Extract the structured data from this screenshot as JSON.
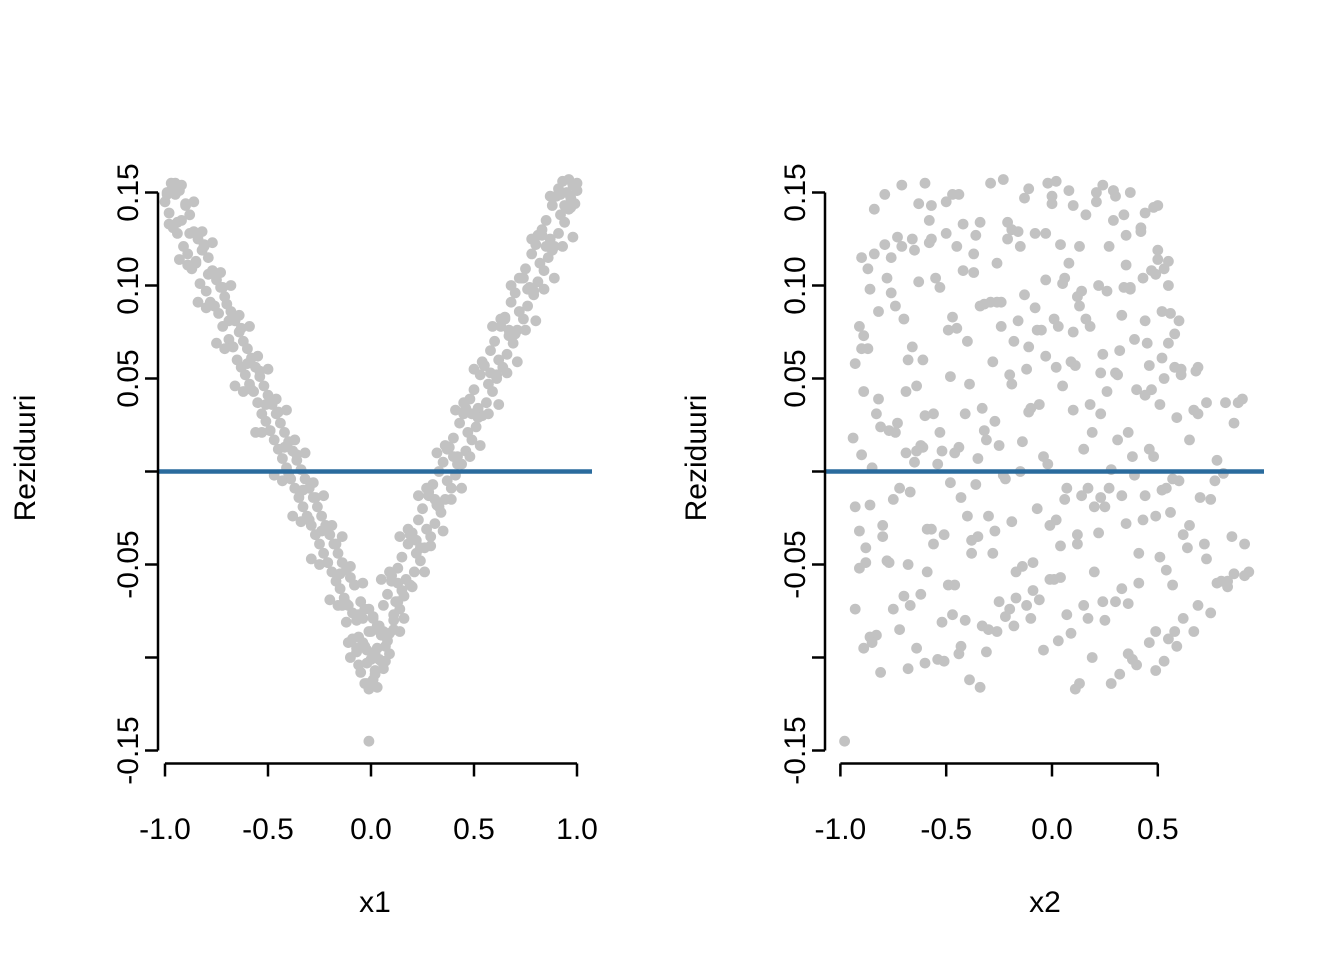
{
  "colors": {
    "background": "#ffffff",
    "point": "#c2c2c2",
    "zero_line": "#2a6b9d",
    "axis": "#000000"
  },
  "points": {
    "x1": [
      -1.0,
      -0.99,
      -0.98,
      -0.97,
      -0.96,
      -0.95,
      -0.94,
      -0.93,
      -0.92,
      -0.91,
      -0.9,
      -0.89,
      -0.88,
      -0.87,
      -0.86,
      -0.85,
      -0.84,
      -0.83,
      -0.82,
      -0.81,
      -0.8,
      -0.79,
      -0.78,
      -0.77,
      -0.76,
      -0.75,
      -0.74,
      -0.73,
      -0.72,
      -0.71,
      -0.7,
      -0.69,
      -0.68,
      -0.67,
      -0.66,
      -0.65,
      -0.64,
      -0.63,
      -0.62,
      -0.61,
      -0.6,
      -0.59,
      -0.58,
      -0.57,
      -0.56,
      -0.55,
      -0.54,
      -0.53,
      -0.52,
      -0.51,
      -0.5,
      -0.49,
      -0.48,
      -0.47,
      -0.46,
      -0.45,
      -0.44,
      -0.43,
      -0.42,
      -0.41,
      -0.4,
      -0.39,
      -0.38,
      -0.37,
      -0.36,
      -0.35,
      -0.34,
      -0.33,
      -0.32,
      -0.31,
      -0.3,
      -0.29,
      -0.28,
      -0.27,
      -0.26,
      -0.25,
      -0.24,
      -0.23,
      -0.22,
      -0.21,
      -0.2,
      -0.19,
      -0.18,
      -0.17,
      -0.16,
      -0.15,
      -0.14,
      -0.13,
      -0.12,
      -0.11,
      -0.1,
      -0.09,
      -0.08,
      -0.07,
      -0.06,
      -0.05,
      -0.04,
      -0.03,
      -0.02,
      -0.01,
      0.0,
      0.01,
      0.02,
      0.03,
      0.04,
      0.05,
      0.06,
      0.07,
      0.08,
      0.09,
      0.1,
      0.11,
      0.12,
      0.13,
      0.14,
      0.15,
      0.16,
      0.17,
      0.18,
      0.19,
      0.2,
      0.21,
      0.22,
      0.23,
      0.24,
      0.25,
      0.26,
      0.27,
      0.28,
      0.29,
      0.3,
      0.31,
      0.32,
      0.33,
      0.34,
      0.35,
      0.36,
      0.37,
      0.38,
      0.39,
      0.4,
      0.41,
      0.42,
      0.43,
      0.44,
      0.45,
      0.46,
      0.47,
      0.48,
      0.49,
      0.5,
      0.51,
      0.52,
      0.53,
      0.54,
      0.55,
      0.56,
      0.57,
      0.58,
      0.59,
      0.6,
      0.61,
      0.62,
      0.63,
      0.64,
      0.65,
      0.66,
      0.67,
      0.68,
      0.69,
      0.7,
      0.71,
      0.72,
      0.73,
      0.74,
      0.75,
      0.76,
      0.77,
      0.78,
      0.79,
      0.8,
      0.81,
      0.82,
      0.83,
      0.84,
      0.85,
      0.86,
      0.87,
      0.88,
      0.89,
      0.9,
      0.91,
      0.92,
      0.93,
      0.94,
      0.95,
      0.96,
      0.97,
      0.98,
      0.99,
      1.0,
      -0.99,
      -0.98,
      -0.97,
      -0.95,
      -0.94,
      -0.93,
      -0.92,
      -0.9,
      -0.89,
      -0.88,
      -0.86,
      -0.85,
      -0.84,
      -0.82,
      -0.81,
      -0.8,
      -0.79,
      -0.77,
      -0.76,
      -0.75,
      -0.73,
      -0.72,
      -0.71,
      -0.69,
      -0.68,
      -0.67,
      -0.66,
      -0.64,
      -0.63,
      -0.62,
      -0.6,
      -0.59,
      -0.58,
      -0.56,
      -0.55,
      -0.54,
      -0.53,
      -0.51,
      -0.5,
      -0.49,
      -0.47,
      -0.46,
      -0.45,
      -0.43,
      -0.42,
      -0.41,
      -0.4,
      -0.38,
      -0.37,
      -0.36,
      -0.34,
      -0.33,
      -0.32,
      -0.3,
      -0.29,
      -0.28,
      -0.27,
      -0.25,
      -0.24,
      -0.23,
      -0.21,
      -0.2,
      -0.19,
      -0.17,
      -0.16,
      -0.15,
      -0.14,
      -0.12,
      -0.11,
      -0.1,
      -0.08,
      -0.07,
      -0.06,
      -0.04,
      -0.03,
      -0.02,
      -0.01,
      0.01,
      0.02,
      0.03,
      0.05,
      0.06,
      0.07,
      0.09,
      0.1,
      0.11,
      0.13,
      0.14,
      0.15,
      0.16,
      0.18,
      0.19,
      0.2,
      0.22,
      0.23,
      0.24,
      0.26,
      0.27,
      0.28,
      0.29,
      0.31,
      0.32,
      0.33,
      0.35,
      0.36,
      0.37,
      0.39,
      0.4,
      0.41,
      0.42,
      0.44,
      0.45,
      0.46,
      0.48,
      0.49,
      0.5,
      0.52,
      0.53,
      0.54,
      0.55,
      0.57,
      0.58,
      0.59,
      0.61,
      0.62,
      0.63,
      0.65,
      0.66,
      0.67,
      0.68,
      0.7,
      0.71,
      0.72,
      0.74,
      0.75,
      0.76,
      0.78,
      0.79,
      0.8,
      0.81,
      0.83,
      0.84,
      0.85,
      0.87,
      0.88,
      0.89,
      0.91,
      0.92,
      0.93,
      0.94,
      0.96,
      0.97,
      0.98,
      1.0,
      -0.14,
      -0.12,
      -0.1,
      -0.09,
      -0.07,
      -0.06,
      -0.05,
      -0.04,
      -0.03,
      -0.02,
      -0.01,
      0.0,
      0.01,
      0.02,
      0.03,
      0.04,
      0.05,
      0.06,
      0.08,
      0.09,
      0.11,
      0.13,
      0.03,
      0.14,
      -0.01
    ],
    "x2": [
      -0.5,
      0.21,
      0.44,
      -0.29,
      0.42,
      -0.79,
      -0.08,
      0.29,
      -0.58,
      0.13,
      0.1,
      -0.37,
      0.34,
      -0.87,
      -0.16,
      0.55,
      -0.66,
      0.05,
      0.5,
      -0.45,
      0.26,
      -0.9,
      -0.24,
      0.47,
      -0.74,
      -0.03,
      0.56,
      -0.53,
      0.18,
      0.12,
      -0.32,
      0.39,
      -0.82,
      -0.11,
      0.6,
      -0.61,
      0.1,
      0.69,
      -0.4,
      0.31,
      -0.9,
      -0.19,
      0.52,
      -0.69,
      0.02,
      0.73,
      -0.48,
      0.23,
      -0.64,
      -0.27,
      0.44,
      -0.77,
      -0.06,
      0.65,
      -0.56,
      0.15,
      0.86,
      -0.35,
      0.36,
      -0.85,
      -0.14,
      0.57,
      -0.64,
      0.07,
      0.78,
      -0.43,
      0.28,
      -0.93,
      -0.22,
      0.49,
      -0.72,
      -0.01,
      0.7,
      -0.51,
      0.2,
      0.91,
      -0.3,
      0.41,
      -0.8,
      -0.09,
      0.62,
      -0.59,
      0.12,
      0.83,
      -0.38,
      0.33,
      -0.88,
      -0.17,
      0.54,
      -0.67,
      0.04,
      0.75,
      -0.46,
      0.25,
      -0.86,
      -0.25,
      0.46,
      -0.75,
      -0.04,
      0.67,
      -0.54,
      0.17,
      0.36,
      -0.33,
      0.38,
      -0.83,
      -0.12,
      0.59,
      -0.62,
      0.09,
      0.8,
      -0.41,
      0.3,
      -0.91,
      -0.2,
      0.51,
      -0.7,
      0.01,
      0.72,
      -0.49,
      0.22,
      0.93,
      -0.28,
      0.43,
      -0.78,
      -0.07,
      0.64,
      -0.57,
      0.14,
      0.85,
      -0.36,
      0.35,
      -0.86,
      -0.15,
      0.56,
      -0.65,
      0.06,
      0.77,
      -0.44,
      0.27,
      -0.94,
      -0.23,
      0.48,
      -0.73,
      -0.02,
      0.69,
      -0.52,
      0.19,
      0.9,
      -0.31,
      0.4,
      -0.81,
      -0.1,
      0.61,
      -0.6,
      0.11,
      0.82,
      -0.39,
      0.32,
      -0.89,
      -0.18,
      0.53,
      -0.68,
      0.03,
      0.58,
      -0.47,
      0.24,
      -0.89,
      -0.26,
      0.45,
      -0.76,
      -0.05,
      0.52,
      -0.55,
      0.16,
      0.53,
      -0.34,
      0.37,
      -0.84,
      -0.13,
      0.04,
      -0.63,
      0.08,
      -0.19,
      -0.42,
      0.29,
      -0.76,
      -0.21,
      0.5,
      -0.71,
      0.0,
      -0.03,
      0.16,
      0.02,
      -0.34,
      0.37,
      -0.84,
      -0.13,
      0.24,
      -0.63,
      0.08,
      -0.47,
      -0.42,
      0.29,
      -0.6,
      -0.21,
      0.5,
      -0.71,
      0.0,
      0.35,
      -0.5,
      0.21,
      -0.26,
      -0.29,
      0.42,
      -0.79,
      -0.08,
      0.49,
      -0.58,
      0.13,
      0.55,
      -0.37,
      0.34,
      -0.87,
      -0.16,
      0.55,
      -0.66,
      0.05,
      0.33,
      -0.45,
      0.26,
      -0.93,
      -0.24,
      0.47,
      -0.74,
      -0.03,
      0.68,
      -0.53,
      0.18,
      0.61,
      -0.32,
      0.39,
      -0.82,
      -0.11,
      0.6,
      -0.61,
      0.1,
      0.81,
      -0.4,
      0.31,
      -0.9,
      -0.19,
      0.52,
      -0.69,
      0.02,
      0.73,
      -0.48,
      0.23,
      -0.68,
      -0.27,
      0.44,
      -0.77,
      -0.06,
      0.65,
      -0.56,
      0.15,
      0.86,
      -0.35,
      0.36,
      -0.85,
      -0.14,
      0.57,
      -0.64,
      0.07,
      0.78,
      -0.43,
      0.28,
      -0.93,
      -0.22,
      0.49,
      -0.72,
      -0.01,
      0.58,
      -0.51,
      0.2,
      0.91,
      -0.3,
      0.41,
      -0.8,
      -0.09,
      0.62,
      -0.59,
      0.12,
      0.83,
      -0.38,
      0.33,
      -0.88,
      -0.17,
      0.54,
      -0.67,
      0.04,
      0.75,
      -0.46,
      0.25,
      -0.91,
      -0.25,
      0.46,
      -0.75,
      -0.04,
      0.67,
      -0.54,
      0.17,
      0.88,
      -0.33,
      0.38,
      -0.83,
      -0.12,
      0.59,
      -0.62,
      0.09,
      0.46,
      -0.41,
      0.3,
      -0.91,
      -0.2,
      0.51,
      -0.7,
      0.01,
      0.23,
      -0.49,
      0.22,
      0.58,
      -0.28,
      0.43,
      -0.78,
      -0.07,
      0.37,
      -0.57,
      0.14,
      0.44,
      -0.36,
      0.35,
      -0.86,
      -0.15,
      0.3,
      -0.65,
      0.06,
      -0.11,
      -0.44,
      0.27,
      -0.57,
      -0.23,
      0.48,
      -0.73,
      -0.02,
      0.69,
      -0.52,
      0.19,
      0.55,
      -0.31,
      0.4,
      -0.81,
      -0.1,
      0.13,
      -0.6,
      0.11,
      0.49,
      -0.39,
      0.32,
      -0.89,
      -0.18,
      0.53,
      -0.68,
      0.03,
      -0.44,
      -0.47,
      0.24,
      -0.34,
      -0.26,
      -0.98
    ],
    "residuals": [
      0.145,
      0.15,
      0.139,
      0.155,
      0.131,
      0.149,
      0.128,
      0.151,
      0.135,
      0.121,
      0.143,
      0.117,
      0.138,
      0.109,
      0.129,
      0.113,
      0.125,
      0.101,
      0.119,
      0.121,
      0.097,
      0.115,
      0.091,
      0.108,
      0.089,
      0.103,
      0.085,
      0.099,
      0.078,
      0.094,
      0.09,
      0.071,
      0.086,
      0.067,
      0.081,
      0.06,
      0.075,
      0.056,
      0.07,
      0.052,
      0.066,
      0.047,
      0.061,
      0.043,
      0.056,
      0.037,
      0.051,
      0.031,
      0.046,
      0.027,
      0.041,
      0.022,
      0.036,
      0.017,
      0.031,
      0.012,
      0.026,
      0.007,
      0.021,
      0.002,
      0.016,
      -0.004,
      0.011,
      -0.009,
      0.006,
      -0.014,
      0.001,
      -0.019,
      -0.004,
      -0.024,
      -0.009,
      -0.029,
      -0.014,
      -0.034,
      -0.019,
      -0.039,
      -0.024,
      -0.044,
      -0.029,
      -0.049,
      -0.034,
      -0.054,
      -0.039,
      -0.059,
      -0.044,
      -0.063,
      -0.049,
      -0.068,
      -0.053,
      -0.072,
      -0.057,
      -0.076,
      -0.061,
      -0.08,
      -0.089,
      -0.07,
      -0.092,
      -0.074,
      -0.096,
      -0.086,
      -0.101,
      -0.079,
      -0.098,
      -0.083,
      -0.101,
      -0.088,
      -0.072,
      -0.094,
      -0.066,
      -0.087,
      -0.059,
      -0.08,
      -0.07,
      -0.052,
      -0.074,
      -0.046,
      -0.067,
      -0.058,
      -0.039,
      -0.061,
      -0.033,
      -0.054,
      -0.044,
      -0.026,
      -0.048,
      -0.02,
      -0.041,
      -0.031,
      -0.013,
      -0.035,
      -0.007,
      -0.028,
      -0.018,
      0.0,
      -0.022,
      0.005,
      -0.015,
      -0.005,
      0.013,
      -0.009,
      0.018,
      -0.002,
      0.008,
      0.026,
      0.004,
      0.031,
      0.011,
      0.021,
      0.039,
      0.017,
      0.044,
      0.024,
      0.034,
      0.052,
      0.03,
      0.057,
      0.037,
      0.047,
      0.065,
      0.043,
      0.07,
      0.05,
      0.06,
      0.078,
      0.056,
      0.083,
      0.063,
      0.073,
      0.091,
      0.069,
      0.096,
      0.076,
      0.086,
      0.104,
      0.082,
      0.109,
      0.089,
      0.099,
      0.117,
      0.095,
      0.122,
      0.102,
      0.112,
      0.13,
      0.108,
      0.135,
      0.115,
      0.125,
      0.143,
      0.121,
      0.148,
      0.128,
      0.138,
      0.156,
      0.134,
      0.15,
      0.141,
      0.147,
      0.154,
      0.144,
      0.151,
      0.149,
      0.133,
      0.151,
      0.155,
      0.134,
      0.114,
      0.154,
      0.144,
      0.111,
      0.128,
      0.145,
      0.112,
      0.091,
      0.129,
      0.122,
      0.088,
      0.106,
      0.123,
      0.089,
      0.069,
      0.107,
      0.099,
      0.066,
      0.081,
      0.1,
      0.067,
      0.046,
      0.084,
      0.077,
      0.043,
      0.058,
      0.078,
      0.044,
      0.021,
      0.062,
      0.054,
      0.021,
      0.036,
      0.055,
      0.022,
      -0.002,
      0.039,
      0.032,
      -0.005,
      0.013,
      0.033,
      -0.001,
      -0.024,
      0.017,
      0.009,
      -0.027,
      -0.01,
      0.01,
      -0.026,
      -0.047,
      -0.006,
      -0.014,
      -0.05,
      -0.032,
      -0.013,
      -0.049,
      -0.069,
      -0.029,
      -0.039,
      -0.072,
      -0.055,
      -0.035,
      -0.071,
      -0.092,
      -0.051,
      -0.061,
      -0.095,
      -0.077,
      -0.06,
      -0.094,
      -0.114,
      -0.074,
      -0.078,
      -0.107,
      -0.085,
      -0.058,
      -0.086,
      -0.102,
      -0.054,
      -0.056,
      -0.085,
      -0.06,
      -0.035,
      -0.064,
      -0.079,
      -0.031,
      -0.034,
      -0.062,
      -0.037,
      -0.013,
      -0.041,
      -0.054,
      -0.009,
      -0.011,
      -0.04,
      -0.015,
      0.01,
      -0.019,
      -0.032,
      0.014,
      0.012,
      -0.015,
      0.008,
      0.033,
      0.004,
      -0.009,
      0.037,
      0.034,
      0.008,
      0.031,
      0.055,
      0.029,
      0.014,
      0.059,
      0.057,
      0.031,
      0.053,
      0.078,
      0.052,
      0.036,
      0.082,
      0.082,
      0.053,
      0.076,
      0.1,
      0.074,
      0.059,
      0.104,
      0.104,
      0.076,
      0.098,
      0.125,
      0.097,
      0.081,
      0.127,
      0.127,
      0.098,
      0.121,
      0.148,
      0.119,
      0.104,
      0.152,
      0.149,
      0.121,
      0.143,
      0.157,
      0.142,
      0.126,
      0.155,
      -0.072,
      -0.081,
      -0.1,
      -0.09,
      -0.097,
      -0.104,
      -0.108,
      -0.079,
      -0.114,
      -0.103,
      -0.117,
      -0.086,
      -0.112,
      -0.109,
      -0.095,
      -0.083,
      -0.102,
      -0.106,
      -0.091,
      -0.098,
      -0.077,
      -0.07,
      -0.116,
      -0.086,
      -0.145
    ]
  },
  "chart_data": [
    {
      "type": "scatter",
      "xlabel": "x1",
      "ylabel": "Reziduuri",
      "x_key": "x1",
      "y_key": "residuals",
      "xlim": [
        -1.05,
        1.05
      ],
      "ylim": [
        -0.162,
        0.162
      ],
      "grid": false,
      "legend": null,
      "hline_y": 0,
      "x_ticks": [
        {
          "v": -1.0,
          "label": "-1.0"
        },
        {
          "v": -0.5,
          "label": "-0.5"
        },
        {
          "v": 0.0,
          "label": "0.0"
        },
        {
          "v": 0.5,
          "label": "0.5"
        },
        {
          "v": 1.0,
          "label": "1.0"
        }
      ],
      "y_ticks": [
        {
          "v": 0.15,
          "label": "0.15"
        },
        {
          "v": 0.1,
          "label": "0.10"
        },
        {
          "v": 0.05,
          "label": "0.05"
        },
        {
          "v": 0.0,
          "label": ""
        },
        {
          "v": -0.05,
          "label": "-0.05"
        },
        {
          "v": -0.1,
          "label": ""
        },
        {
          "v": -0.15,
          "label": "-0.15"
        }
      ]
    },
    {
      "type": "scatter",
      "xlabel": "x2",
      "ylabel": "Reziduuri",
      "x_key": "x2",
      "y_key": "residuals",
      "xlim": [
        -1.07,
        1.0
      ],
      "ylim": [
        -0.162,
        0.162
      ],
      "grid": false,
      "legend": null,
      "hline_y": 0,
      "x_ticks": [
        {
          "v": -1.0,
          "label": "-1.0"
        },
        {
          "v": -0.5,
          "label": "-0.5"
        },
        {
          "v": 0.0,
          "label": "0.0"
        },
        {
          "v": 0.5,
          "label": "0.5"
        }
      ],
      "y_ticks": [
        {
          "v": 0.15,
          "label": "0.15"
        },
        {
          "v": 0.1,
          "label": "0.10"
        },
        {
          "v": 0.05,
          "label": "0.05"
        },
        {
          "v": 0.0,
          "label": ""
        },
        {
          "v": -0.05,
          "label": "-0.05"
        },
        {
          "v": -0.1,
          "label": ""
        },
        {
          "v": -0.15,
          "label": "-0.15"
        }
      ]
    }
  ]
}
